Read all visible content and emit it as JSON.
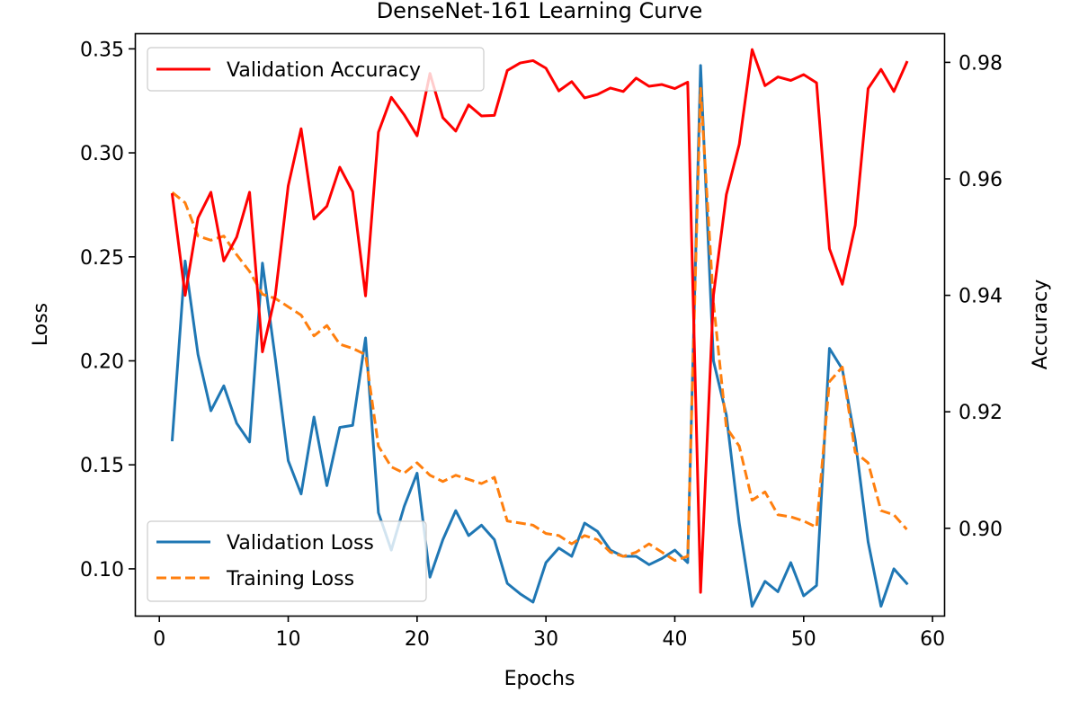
{
  "chart_data": {
    "type": "line",
    "title": "DenseNet-161 Learning Curve",
    "xlabel": "Epochs",
    "ylabel_left": "Loss",
    "ylabel_right": "Accuracy",
    "xlim": [
      -1.9,
      60.9
    ],
    "ylim_left": [
      0.0775,
      0.3575
    ],
    "ylim_right": [
      0.885,
      0.985
    ],
    "x_ticks": [
      0,
      10,
      20,
      30,
      40,
      50,
      60
    ],
    "y_ticks_left": [
      0.1,
      0.15,
      0.2,
      0.25,
      0.3,
      0.35
    ],
    "y_ticks_right": [
      0.9,
      0.92,
      0.94,
      0.96,
      0.98
    ],
    "grid": false,
    "x": [
      1,
      2,
      3,
      4,
      5,
      6,
      7,
      8,
      9,
      10,
      11,
      12,
      13,
      14,
      15,
      16,
      17,
      18,
      19,
      20,
      21,
      22,
      23,
      24,
      25,
      26,
      27,
      28,
      29,
      30,
      31,
      32,
      33,
      34,
      35,
      36,
      37,
      38,
      39,
      40,
      41,
      42,
      43,
      44,
      45,
      46,
      47,
      48,
      49,
      50,
      51,
      52,
      53,
      54,
      55,
      56,
      57,
      58
    ],
    "series": [
      {
        "name": "Validation Loss",
        "axis": "left",
        "color": "#1f77b4",
        "dash": "solid",
        "values": [
          0.162,
          0.248,
          0.203,
          0.176,
          0.188,
          0.17,
          0.161,
          0.247,
          0.201,
          0.152,
          0.136,
          0.173,
          0.14,
          0.168,
          0.169,
          0.211,
          0.127,
          0.109,
          0.13,
          0.146,
          0.096,
          0.114,
          0.128,
          0.116,
          0.121,
          0.114,
          0.093,
          0.088,
          0.084,
          0.103,
          0.11,
          0.106,
          0.122,
          0.118,
          0.109,
          0.106,
          0.106,
          0.102,
          0.105,
          0.109,
          0.103,
          0.342,
          0.2,
          0.174,
          0.122,
          0.082,
          0.094,
          0.089,
          0.103,
          0.087,
          0.092,
          0.206,
          0.196,
          0.162,
          0.113,
          0.082,
          0.1,
          0.093
        ]
      },
      {
        "name": "Training Loss",
        "axis": "left",
        "color": "#ff7f0e",
        "dash": "dashed",
        "values": [
          0.281,
          0.276,
          0.26,
          0.258,
          0.26,
          0.251,
          0.243,
          0.232,
          0.23,
          0.226,
          0.222,
          0.212,
          0.217,
          0.208,
          0.206,
          0.203,
          0.159,
          0.149,
          0.146,
          0.151,
          0.145,
          0.142,
          0.145,
          0.143,
          0.141,
          0.144,
          0.123,
          0.122,
          0.121,
          0.117,
          0.116,
          0.112,
          0.116,
          0.114,
          0.108,
          0.106,
          0.108,
          0.112,
          0.108,
          0.104,
          0.106,
          0.331,
          0.228,
          0.168,
          0.159,
          0.133,
          0.137,
          0.126,
          0.125,
          0.123,
          0.12,
          0.19,
          0.197,
          0.156,
          0.151,
          0.128,
          0.126,
          0.119
        ]
      },
      {
        "name": "Validation Accuracy",
        "axis": "right",
        "color": "#ff0000",
        "dash": "solid",
        "values": [
          0.9573,
          0.94,
          0.9533,
          0.9577,
          0.9459,
          0.95,
          0.9577,
          0.9303,
          0.94,
          0.9588,
          0.9686,
          0.9531,
          0.9553,
          0.962,
          0.9578,
          0.9399,
          0.968,
          0.974,
          0.971,
          0.9674,
          0.9781,
          0.9705,
          0.9682,
          0.9727,
          0.9708,
          0.9709,
          0.9786,
          0.9799,
          0.9803,
          0.979,
          0.9751,
          0.9767,
          0.9739,
          0.9745,
          0.9756,
          0.975,
          0.9773,
          0.9759,
          0.9762,
          0.9755,
          0.9766,
          0.889,
          0.94,
          0.9573,
          0.9659,
          0.9822,
          0.976,
          0.9775,
          0.9769,
          0.9779,
          0.9765,
          0.948,
          0.9419,
          0.952,
          0.9755,
          0.9788,
          0.975,
          0.98
        ]
      }
    ],
    "legends": [
      {
        "placement": "upper-left",
        "entries": [
          "Validation Accuracy"
        ]
      },
      {
        "placement": "lower-left",
        "entries": [
          "Validation Loss",
          "Training Loss"
        ]
      }
    ]
  }
}
